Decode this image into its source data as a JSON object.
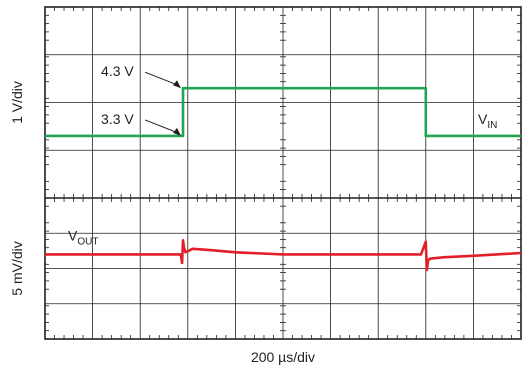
{
  "chart_data": {
    "type": "line",
    "x_axis": {
      "label_prefix": "200 ",
      "label_unit": "µs/div",
      "divisions": 10
    },
    "panels": [
      {
        "name": "upper",
        "axis_label": "1 V/div",
        "divisions": 4,
        "trace_label": {
          "main": "V",
          "sub": "IN"
        },
        "color": "#22a455",
        "x": [
          0,
          2.9,
          2.9,
          8.0,
          8.0,
          10.0
        ],
        "y": [
          3.3,
          3.3,
          4.3,
          4.3,
          3.3,
          3.3
        ],
        "annotations": [
          {
            "text": "4.3 V",
            "y": 4.3,
            "x_ref": 2.9
          },
          {
            "text": "3.3 V",
            "y": 3.3,
            "x_ref": 2.9
          }
        ]
      },
      {
        "name": "lower",
        "axis_label": "5 mV/div",
        "divisions": 4,
        "trace_label": {
          "main": "V",
          "sub": "OUT"
        },
        "color": "#e3202a",
        "x": [
          0,
          2.85,
          2.88,
          2.9,
          2.92,
          2.95,
          3.1,
          3.5,
          4.0,
          5.0,
          6.0,
          7.0,
          7.9,
          8.0,
          8.02,
          8.05,
          8.1,
          8.4,
          9.0,
          10.0
        ],
        "y": [
          0,
          0,
          -1.2,
          2.0,
          1.0,
          0.3,
          0.8,
          0.6,
          0.3,
          0,
          0,
          0,
          0,
          1.8,
          -2.2,
          -0.8,
          -0.6,
          -0.4,
          -0.2,
          0.2
        ]
      }
    ]
  }
}
